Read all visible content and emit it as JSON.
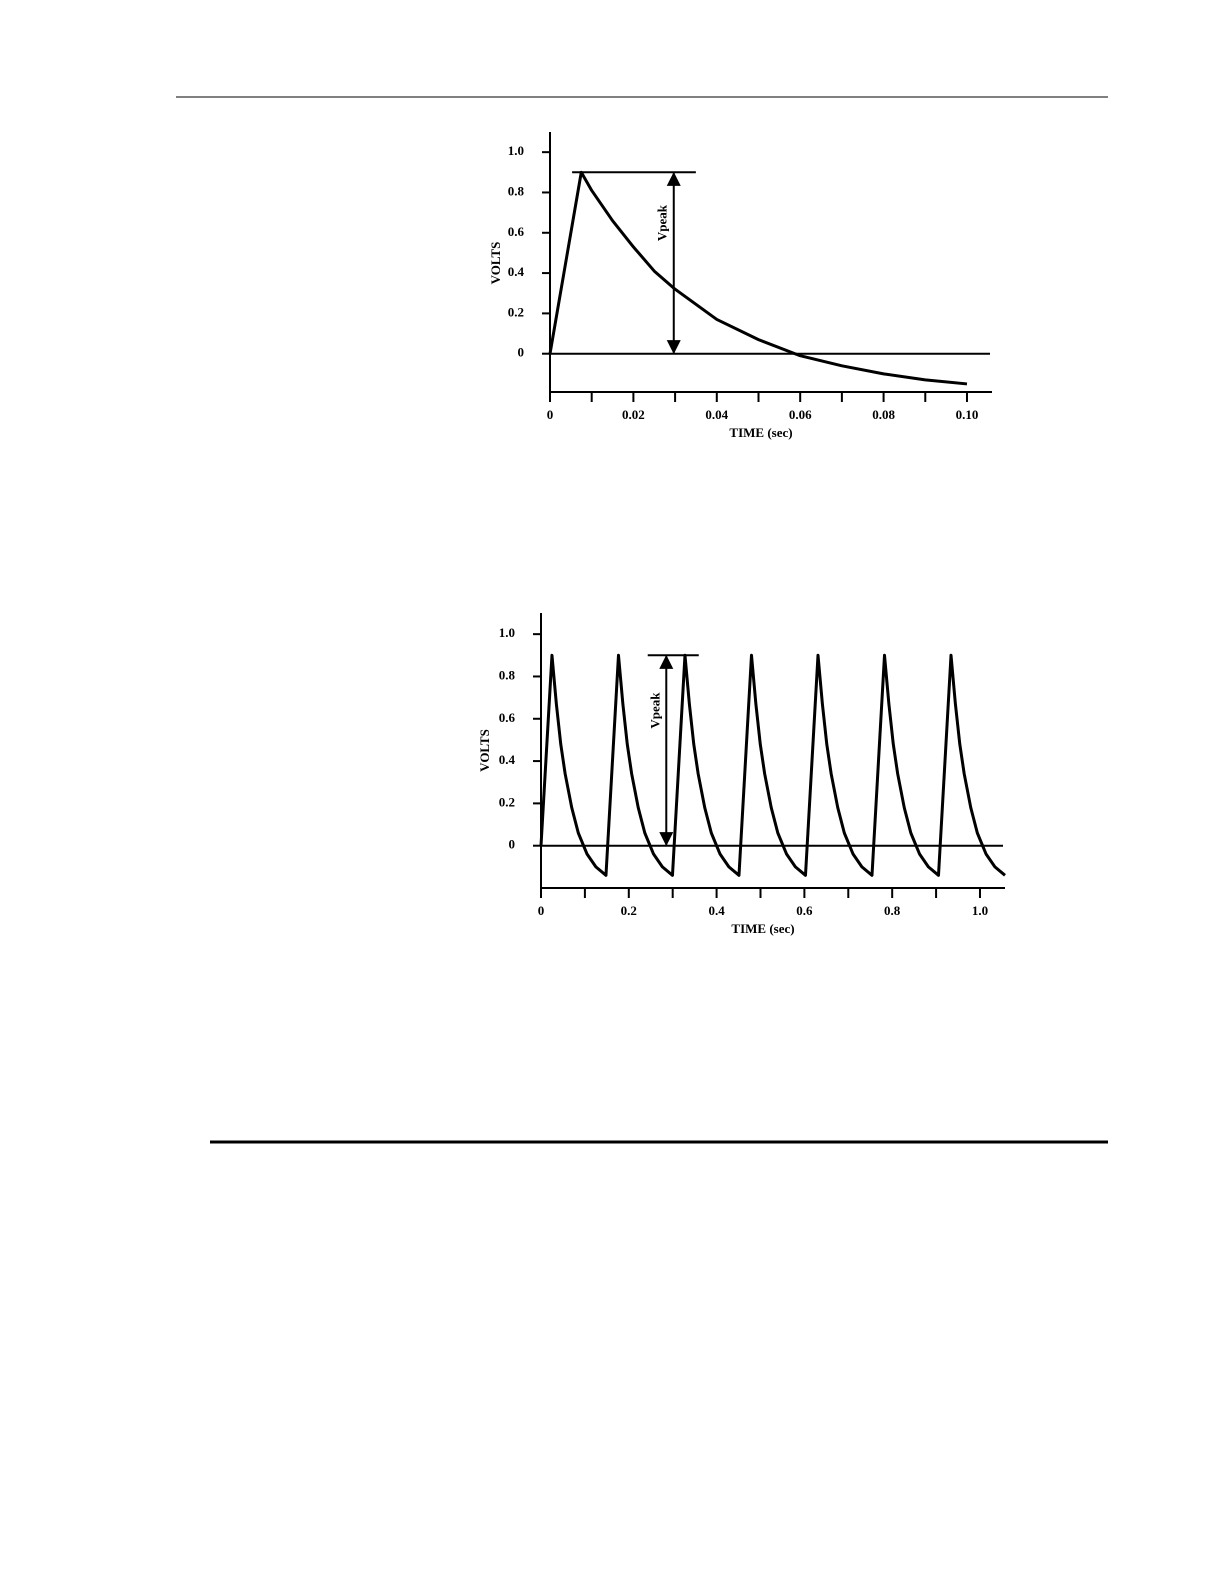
{
  "chart_data": [
    {
      "type": "line",
      "x_label": "TIME (sec)",
      "y_label": "VOLTS",
      "annotation": {
        "text": "Vpeak",
        "value": 0.9
      },
      "color": "#000000",
      "x": [
        0,
        0.0075,
        0.01,
        0.015,
        0.02,
        0.025,
        0.03,
        0.04,
        0.05,
        0.06,
        0.07,
        0.08,
        0.09,
        0.1
      ],
      "values": [
        0,
        0.9,
        0.81,
        0.66,
        0.53,
        0.41,
        0.32,
        0.17,
        0.07,
        -0.01,
        -0.06,
        -0.1,
        -0.13,
        -0.15
      ],
      "xlim": [
        0,
        0.106
      ],
      "ylim": [
        -0.19,
        1.1
      ],
      "xticks": [
        0,
        0.02,
        0.04,
        0.06,
        0.08,
        {
          "value": 0.1,
          "label": "0.10"
        }
      ],
      "yticks": [
        0,
        0.2,
        0.4,
        0.6,
        0.8,
        {
          "value": 1,
          "label": "1.0"
        }
      ]
    },
    {
      "type": "line",
      "x_label": "TIME (sec)",
      "y_label": "VOLTS",
      "annotation": {
        "text": "Vpeak",
        "value": 0.9
      },
      "color": "#000000",
      "x": [
        0,
        0.025,
        0.035,
        0.045,
        0.055,
        0.07,
        0.085,
        0.105,
        0.125,
        0.148,
        0.1765,
        0.1865,
        0.1965,
        0.2065,
        0.2215,
        0.2365,
        0.2565,
        0.2765,
        0.2995,
        0.328,
        0.338,
        0.348,
        0.358,
        0.373,
        0.388,
        0.408,
        0.428,
        0.451,
        0.4795,
        0.4895,
        0.4995,
        0.5095,
        0.5245,
        0.5395,
        0.5595,
        0.5795,
        0.6025,
        0.631,
        0.641,
        0.651,
        0.661,
        0.676,
        0.691,
        0.711,
        0.731,
        0.754,
        0.7825,
        0.7925,
        0.8025,
        0.8125,
        0.8275,
        0.8425,
        0.8625,
        0.8825,
        0.9055,
        0.934,
        0.944,
        0.954,
        0.964,
        0.979,
        0.994,
        1.014,
        1.034,
        1.057
      ],
      "values": [
        0,
        0.9,
        0.67,
        0.48,
        0.34,
        0.18,
        0.06,
        -0.04,
        -0.1,
        -0.14,
        0.9,
        0.67,
        0.48,
        0.34,
        0.18,
        0.06,
        -0.04,
        -0.1,
        -0.14,
        0.9,
        0.67,
        0.48,
        0.34,
        0.18,
        0.06,
        -0.04,
        -0.1,
        -0.14,
        0.9,
        0.67,
        0.48,
        0.34,
        0.18,
        0.06,
        -0.04,
        -0.1,
        -0.14,
        0.9,
        0.67,
        0.48,
        0.34,
        0.18,
        0.06,
        -0.04,
        -0.1,
        -0.14,
        0.9,
        0.67,
        0.48,
        0.34,
        0.18,
        0.06,
        -0.04,
        -0.1,
        -0.14,
        0.9,
        0.67,
        0.48,
        0.34,
        0.18,
        0.06,
        -0.04,
        -0.1,
        -0.14
      ],
      "xlim": [
        0,
        1.057
      ],
      "ylim": [
        -0.2,
        1.1
      ],
      "xticks": [
        0,
        0.2,
        0.4,
        0.6,
        0.8,
        {
          "value": 1,
          "label": "1.0"
        }
      ],
      "yticks": [
        0,
        0.2,
        0.4,
        0.6,
        0.8,
        {
          "value": 1,
          "label": "1.0"
        }
      ]
    }
  ]
}
